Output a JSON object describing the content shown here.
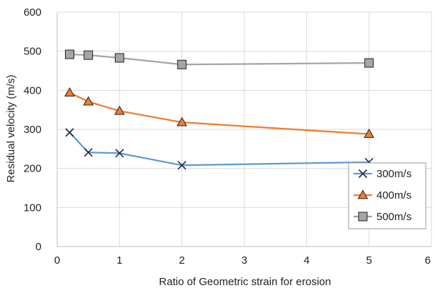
{
  "chart_data": {
    "type": "line",
    "title": "",
    "xlabel": "Ratio of Geometric strain for erosion",
    "ylabel": "Residual velocity (m/s)",
    "xlim": [
      0,
      6
    ],
    "ylim": [
      0,
      600
    ],
    "x_ticks": [
      0,
      1,
      2,
      3,
      4,
      5,
      6
    ],
    "y_ticks": [
      0,
      100,
      200,
      300,
      400,
      500,
      600
    ],
    "x_tick_labels": [
      "0",
      "1",
      "2",
      "3",
      "4",
      "5",
      "6"
    ],
    "y_tick_labels": [
      "0",
      "100",
      "200",
      "300",
      "400",
      "500",
      "600"
    ],
    "grid": true,
    "legend_position": "bottom-right",
    "series": [
      {
        "name": "300m/s",
        "color": "#5b9bd5",
        "marker": "x",
        "x": [
          0.2,
          0.5,
          1,
          2,
          5
        ],
        "y": [
          292,
          241,
          239,
          208,
          216
        ]
      },
      {
        "name": "400m/s",
        "color": "#ed7d31",
        "marker": "triangle",
        "x": [
          0.2,
          0.5,
          1,
          2,
          5
        ],
        "y": [
          394,
          371,
          347,
          318,
          288
        ]
      },
      {
        "name": "500m/s",
        "color": "#a5a5a5",
        "marker": "square",
        "x": [
          0.2,
          0.5,
          1,
          2,
          5
        ],
        "y": [
          492,
          490,
          483,
          466,
          470
        ]
      }
    ]
  }
}
